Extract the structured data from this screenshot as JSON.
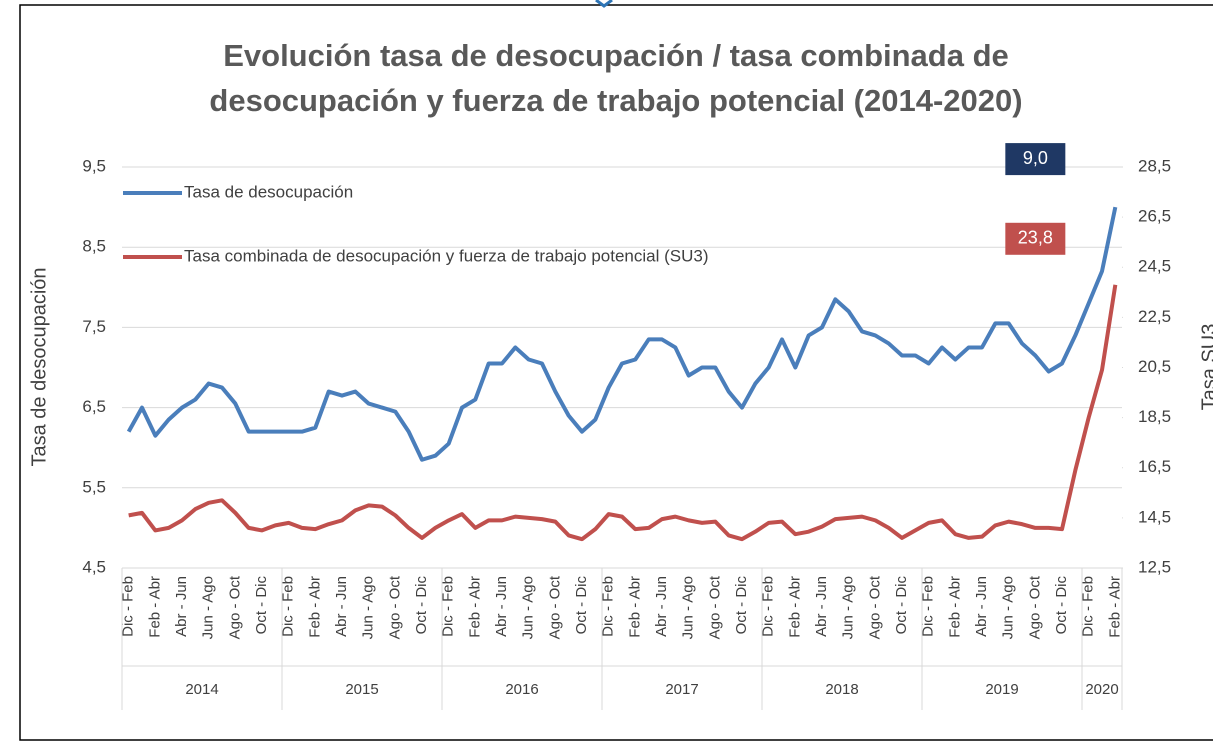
{
  "chart_data": {
    "type": "line",
    "title": [
      "Evolución tasa de desocupación / tasa combinada de",
      "desocupación y fuerza de trabajo potencial (2014-2020)"
    ],
    "y_label": "Tasa de desocupación",
    "y2_label": "Tasa SU3",
    "categories": [
      "Dic - Feb",
      null,
      "Feb - Abr",
      null,
      "Abr - Jun",
      null,
      "Jun - Ago",
      null,
      "Ago - Oct",
      null,
      "Oct - Dic",
      null,
      "Dic - Feb",
      null,
      "Feb - Abr",
      null,
      "Abr - Jun",
      null,
      "Jun - Ago",
      null,
      "Ago - Oct",
      null,
      "Oct - Dic",
      null,
      "Dic - Feb",
      null,
      "Feb - Abr",
      null,
      "Abr - Jun",
      null,
      "Jun - Ago",
      null,
      "Ago - Oct",
      null,
      "Oct - Dic",
      null,
      "Dic - Feb",
      null,
      "Feb - Abr",
      null,
      "Abr - Jun",
      null,
      "Jun - Ago",
      null,
      "Ago - Oct",
      null,
      "Oct - Dic",
      null,
      "Dic - Feb",
      null,
      "Feb - Abr",
      null,
      "Abr - Jun",
      null,
      "Jun - Ago",
      null,
      "Ago - Oct",
      null,
      "Oct - Dic",
      null,
      "Dic - Feb",
      null,
      "Feb - Abr",
      null,
      "Abr - Jun",
      null,
      "Jun - Ago",
      null,
      "Ago - Oct",
      null,
      "Oct - Dic",
      null,
      "Dic - Feb",
      null,
      "Feb - Abr"
    ],
    "groups": [
      "2014",
      "2015",
      "2016",
      "2017",
      "2018",
      "2019",
      "2020"
    ],
    "series": [
      {
        "name": "Tasa de desocupación",
        "color": "#4a7ebb",
        "axis": "y",
        "values": [
          6.2,
          6.5,
          6.15,
          6.35,
          6.5,
          6.6,
          6.8,
          6.75,
          6.55,
          6.2,
          6.2,
          6.2,
          6.2,
          6.2,
          6.25,
          6.7,
          6.65,
          6.7,
          6.55,
          6.5,
          6.45,
          6.2,
          5.85,
          5.9,
          6.05,
          6.5,
          6.6,
          7.05,
          7.05,
          7.25,
          7.1,
          7.05,
          6.7,
          6.4,
          6.2,
          6.35,
          6.75,
          7.05,
          7.1,
          7.35,
          7.35,
          7.25,
          6.9,
          7.0,
          7.0,
          6.7,
          6.5,
          6.8,
          7.0,
          7.35,
          7.0,
          7.4,
          7.5,
          7.85,
          7.7,
          7.45,
          7.4,
          7.3,
          7.15,
          7.15,
          7.05,
          7.25,
          7.1,
          7.25,
          7.25,
          7.55,
          7.55,
          7.3,
          7.15,
          6.95,
          7.05,
          7.4,
          7.8,
          8.2,
          9.0
        ],
        "value_labels": [
          null,
          null,
          null,
          null,
          null,
          null,
          null,
          null,
          null,
          null,
          null,
          null,
          null,
          null,
          null,
          null,
          null,
          null,
          null,
          null,
          null,
          null,
          null,
          null,
          null,
          null,
          null,
          null,
          null,
          null,
          null,
          null,
          null,
          null,
          null,
          null,
          null,
          null,
          null,
          null,
          null,
          null,
          null,
          null,
          null,
          null,
          null,
          null,
          null,
          null,
          null,
          null,
          null,
          null,
          null,
          null,
          null,
          null,
          null,
          null,
          null,
          null,
          null,
          null,
          null,
          null,
          null,
          null,
          null,
          null,
          null,
          null,
          null,
          null,
          "9,0"
        ]
      },
      {
        "name": "Tasa combinada de desocupación y fuerza de trabajo potencial (SU3)",
        "color": "#c0504d",
        "axis": "y2",
        "values": [
          14.6,
          14.7,
          14.0,
          14.1,
          14.4,
          14.85,
          15.1,
          15.2,
          14.7,
          14.1,
          14.0,
          14.2,
          14.3,
          14.1,
          14.05,
          14.25,
          14.4,
          14.8,
          15.0,
          14.95,
          14.6,
          14.1,
          13.7,
          14.1,
          14.4,
          14.65,
          14.1,
          14.4,
          14.4,
          14.55,
          14.5,
          14.45,
          14.35,
          13.8,
          13.65,
          14.05,
          14.65,
          14.55,
          14.05,
          14.1,
          14.45,
          14.55,
          14.4,
          14.3,
          14.35,
          13.8,
          13.65,
          13.95,
          14.3,
          14.35,
          13.85,
          13.95,
          14.15,
          14.45,
          14.5,
          14.55,
          14.4,
          14.1,
          13.7,
          14.0,
          14.3,
          14.4,
          13.85,
          13.7,
          13.75,
          14.2,
          14.35,
          14.25,
          14.1,
          14.1,
          14.05,
          16.4,
          18.5,
          20.4,
          23.8
        ],
        "value_labels": [
          null,
          null,
          null,
          null,
          null,
          null,
          null,
          null,
          null,
          null,
          null,
          null,
          null,
          null,
          null,
          null,
          null,
          null,
          null,
          null,
          null,
          null,
          null,
          null,
          null,
          null,
          null,
          null,
          null,
          null,
          null,
          null,
          null,
          null,
          null,
          null,
          null,
          null,
          null,
          null,
          null,
          null,
          null,
          null,
          null,
          null,
          null,
          null,
          null,
          null,
          null,
          null,
          null,
          null,
          null,
          null,
          null,
          null,
          null,
          null,
          null,
          null,
          null,
          null,
          null,
          null,
          null,
          null,
          null,
          null,
          null,
          null,
          null,
          null,
          "23,8"
        ]
      }
    ],
    "ylim": [
      4.5,
      9.5
    ],
    "yticks": [
      {
        "value": 4.5,
        "label": "4,5"
      },
      {
        "value": 5.5,
        "label": "5,5"
      },
      {
        "value": 6.5,
        "label": "6,5"
      },
      {
        "value": 7.5,
        "label": "7,5"
      },
      {
        "value": 8.5,
        "label": "8,5"
      },
      {
        "value": 9.5,
        "label": "9,5"
      }
    ],
    "y2lim": [
      12.5,
      28.5
    ],
    "y2ticks": [
      {
        "value": 12.5,
        "label": "12,5"
      },
      {
        "value": 14.5,
        "label": "14,5"
      },
      {
        "value": 16.5,
        "label": "16,5"
      },
      {
        "value": 18.5,
        "label": "18,5"
      },
      {
        "value": 20.5,
        "label": "20,5"
      },
      {
        "value": 22.5,
        "label": "22,5"
      },
      {
        "value": 24.5,
        "label": "24,5"
      },
      {
        "value": 26.5,
        "label": "26,5"
      },
      {
        "value": 28.5,
        "label": "28,5"
      }
    ],
    "grid": true,
    "legend": "top-left"
  }
}
